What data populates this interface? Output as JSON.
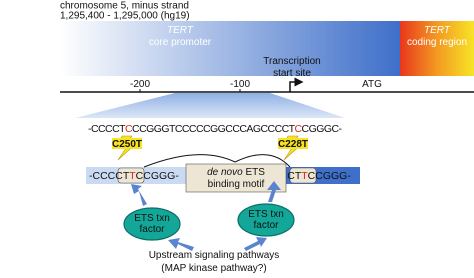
{
  "header": {
    "chromosome": "chromosome 5, minus strand",
    "coordinates": "1,295,400 - 1,295,000 (hg19)"
  },
  "regions": [
    {
      "gene": "TERT",
      "label": "core promoter"
    },
    {
      "gene": "TERT",
      "label": "coding region"
    }
  ],
  "tss_label": [
    "Transcription",
    "start site"
  ],
  "axis": {
    "ticks": [
      "-200",
      "-100"
    ],
    "atg": "ATG"
  },
  "sequence": [
    "-CCCCT",
    "C",
    "CCGGGTCCCCCGGCCCAGCCCCT",
    "C",
    "CGGGC-"
  ],
  "mutations": [
    "C250T",
    "C228T"
  ],
  "mutant_sequences": [
    [
      "-CCCCT",
      "T",
      "CCGGG-"
    ],
    [
      "-CCCCT",
      "T",
      "CCGGG-"
    ]
  ],
  "motif": {
    "italic": "de novo",
    "line1": "ETS",
    "line2": "binding motif"
  },
  "factors": [
    [
      "ETS txn",
      "factor"
    ],
    [
      "ETS txn",
      "factor"
    ]
  ],
  "upstream": [
    "Upstream signaling pathways",
    "(MAP kinase pathway?)"
  ]
}
